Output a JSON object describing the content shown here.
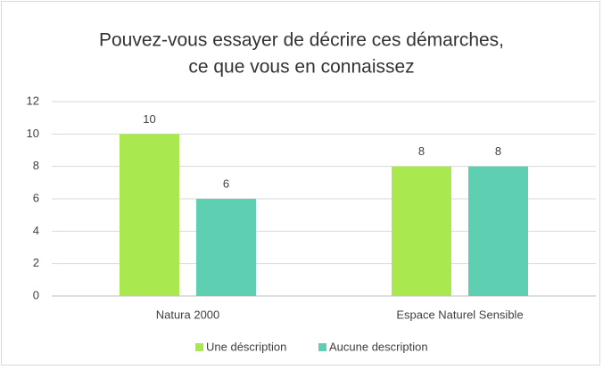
{
  "chart_data": {
    "type": "bar",
    "title": [
      "Pouvez-vous essayer de décrire ces démarches,",
      "ce que vous en connaissez"
    ],
    "categories": [
      "Natura 2000",
      "Espace Naturel Sensible"
    ],
    "series": [
      {
        "name": "Une déscription",
        "color": "#a9e84f",
        "values": [
          10,
          8
        ]
      },
      {
        "name": "Aucune description",
        "color": "#5ecfb1",
        "values": [
          6,
          8
        ]
      }
    ],
    "ylim": [
      0,
      12
    ],
    "yticks": [
      0,
      2,
      4,
      6,
      8,
      10,
      12
    ],
    "grid": true,
    "legend": "bottom"
  }
}
